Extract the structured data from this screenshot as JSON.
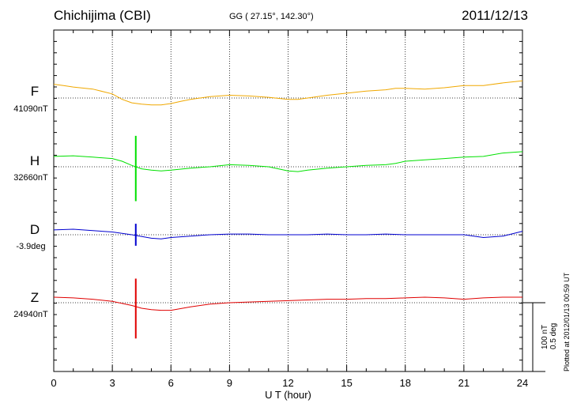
{
  "header": {
    "station": "Chichijima (CBI)",
    "coords": "GG ( 27.15°, 142.30°)",
    "date": "2011/12/13"
  },
  "footer": {
    "plotted": "Plotted at 2012/01/13 00:59 UT",
    "scale_line1": "100 nT",
    "scale_line2": "0.5 deg"
  },
  "colors": {
    "F": "#f0a800",
    "H": "#00e000",
    "D": "#0000d0",
    "Z": "#e00000"
  },
  "chart_data": {
    "type": "line",
    "xlabel": "U T (hour)",
    "xlim": [
      0,
      24
    ],
    "xticks": [
      0,
      3,
      6,
      9,
      12,
      15,
      18,
      21,
      24
    ],
    "grid": true,
    "scale": "100 nT / 0.5 deg per division",
    "series": [
      {
        "name": "F",
        "baseline_label": "41090nT",
        "baseline": 41090,
        "unit": "nT",
        "x": [
          0,
          0.5,
          1,
          2,
          3,
          3.5,
          4,
          4.5,
          5,
          5.5,
          6,
          6.5,
          7,
          8,
          9,
          10,
          11,
          12,
          12.5,
          13,
          14,
          15,
          16,
          17,
          17.5,
          18,
          19,
          20,
          21,
          22,
          23,
          24
        ],
        "values": [
          20,
          18,
          16,
          13,
          6,
          -2,
          -7,
          -9,
          -10,
          -10,
          -8,
          -5,
          -2,
          2,
          4,
          3,
          1,
          -2,
          -2,
          0,
          4,
          7,
          10,
          12,
          14,
          14,
          13,
          15,
          18,
          18,
          22,
          25
        ],
        "spikes": []
      },
      {
        "name": "H",
        "baseline_label": "32660nT",
        "baseline": 32660,
        "unit": "nT",
        "x": [
          0,
          1,
          2,
          3,
          3.5,
          4,
          4.5,
          5,
          5.5,
          6,
          7,
          8,
          9,
          10,
          11,
          12,
          12.5,
          13,
          14,
          15,
          16,
          17,
          17.5,
          18,
          19,
          20,
          21,
          22,
          23,
          24
        ],
        "values": [
          15,
          16,
          14,
          12,
          8,
          2,
          -3,
          -5,
          -6,
          -5,
          -2,
          0,
          3,
          2,
          0,
          -6,
          -7,
          -5,
          -2,
          0,
          2,
          3,
          5,
          8,
          10,
          12,
          14,
          15,
          20,
          22
        ],
        "spikes": [
          {
            "x": 4.2,
            "max": 45,
            "min": -50
          }
        ]
      },
      {
        "name": "D",
        "baseline_label": "-3.9deg",
        "baseline": -3.9,
        "unit": "deg",
        "x": [
          0,
          1,
          2,
          3,
          4,
          5,
          5.5,
          6,
          7,
          8,
          9,
          10,
          11,
          12,
          13,
          14,
          15,
          16,
          17,
          18,
          19,
          20,
          21,
          22,
          23,
          24
        ],
        "values": [
          7,
          8,
          6,
          4,
          0,
          -5,
          -6,
          -4,
          -2,
          0,
          1,
          1,
          0,
          0,
          0,
          1,
          0,
          0,
          1,
          0,
          0,
          0,
          0,
          -4,
          -2,
          5
        ],
        "spikes": [
          {
            "x": 4.2,
            "max": 16,
            "min": -16
          }
        ]
      },
      {
        "name": "Z",
        "baseline_label": "24940nT",
        "baseline": 24940,
        "unit": "nT",
        "x": [
          0,
          1,
          2,
          3,
          3.5,
          4,
          4.5,
          5,
          5.5,
          6,
          7,
          8,
          9,
          10,
          11,
          12,
          13,
          14,
          15,
          16,
          17,
          18,
          19,
          20,
          21,
          22,
          23,
          24
        ],
        "values": [
          8,
          7,
          5,
          2,
          -1,
          -4,
          -8,
          -10,
          -11,
          -11,
          -6,
          -2,
          0,
          1,
          2,
          3,
          4,
          5,
          5,
          6,
          6,
          7,
          8,
          7,
          5,
          7,
          8,
          8
        ],
        "spikes": [
          {
            "x": 4.2,
            "max": 35,
            "min": -52
          }
        ]
      }
    ]
  }
}
